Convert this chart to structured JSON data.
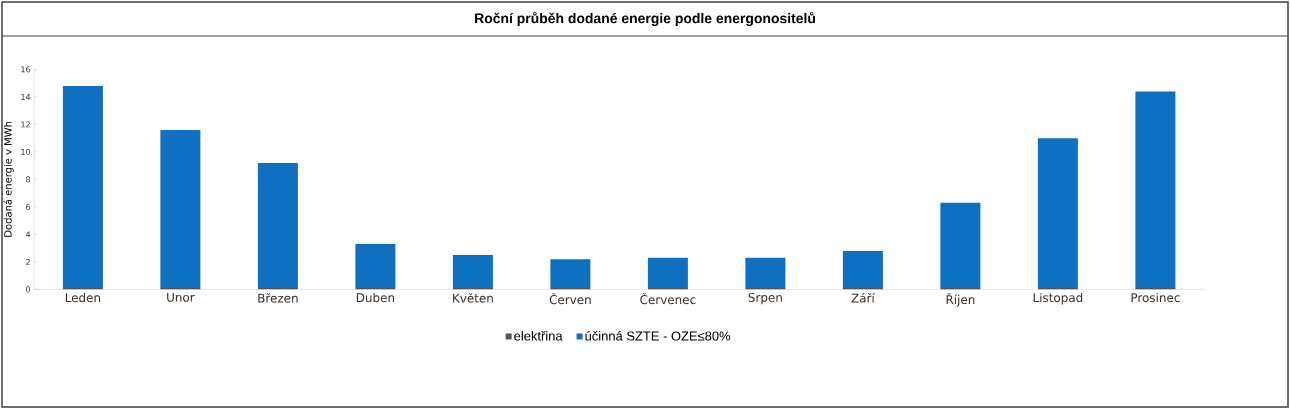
{
  "chart_data": {
    "type": "bar",
    "title": "Roční průběh dodané energie podle energonositelů",
    "ylabel": "Dodaná energie v MWh",
    "categories": [
      "Leden",
      "Unor",
      "Březen",
      "Duben",
      "Květen",
      "Červen",
      "Červenec",
      "Srpen",
      "Září",
      "Říjen",
      "Listopad",
      "Prosinec"
    ],
    "stacked": true,
    "series": [
      {
        "name": "elektřina",
        "color": "#555555",
        "values": [
          0.1,
          0.1,
          0.1,
          0.1,
          0.1,
          0.1,
          0.1,
          0.1,
          0.1,
          0.1,
          0.1,
          0.1
        ]
      },
      {
        "name": "účinná SZTE - OZE≤80%",
        "color": "#0f6fc0",
        "values": [
          14.7,
          11.5,
          9.1,
          3.2,
          2.4,
          2.1,
          2.2,
          2.2,
          2.7,
          6.2,
          10.9,
          14.3
        ]
      }
    ],
    "ylim": [
      0,
      16
    ],
    "yticks": [
      0,
      2,
      4,
      6,
      8,
      10,
      12,
      14,
      16
    ],
    "grid": false,
    "legend": "bottom"
  }
}
